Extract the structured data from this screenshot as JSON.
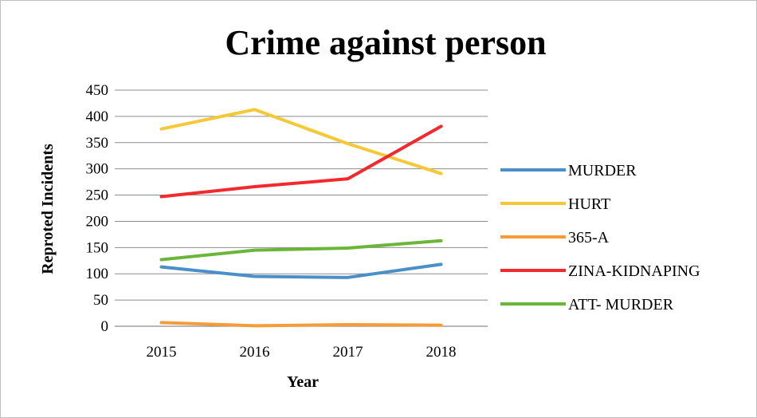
{
  "chart_data": {
    "type": "line",
    "title": "Crime against person",
    "xlabel": "Year",
    "ylabel": "Reproted Incidents",
    "categories": [
      "2015",
      "2016",
      "2017",
      "2018"
    ],
    "ylim": [
      0,
      450
    ],
    "yticks": [
      0,
      50,
      100,
      150,
      200,
      250,
      300,
      350,
      400,
      450
    ],
    "grid": true,
    "legend_position": "right",
    "series": [
      {
        "name": "MURDER",
        "color": "#4a8fc8",
        "values": [
          113,
          95,
          93,
          118
        ]
      },
      {
        "name": "HURT",
        "color": "#f4c836",
        "values": [
          376,
          413,
          348,
          291
        ]
      },
      {
        "name": "365-A",
        "color": "#f59b3a",
        "values": [
          7,
          1,
          3,
          2
        ]
      },
      {
        "name": "ZINA-KIDNAPING",
        "color": "#f2292d",
        "values": [
          247,
          266,
          281,
          381
        ]
      },
      {
        "name": "ATT- MURDER",
        "color": "#6bb53b",
        "values": [
          127,
          145,
          149,
          163
        ]
      }
    ]
  }
}
